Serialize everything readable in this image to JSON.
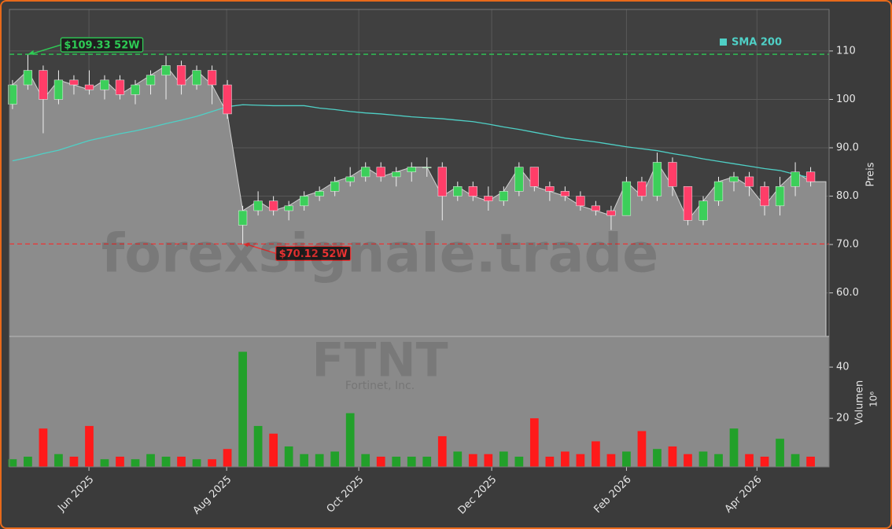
{
  "chart_data": {
    "type": "candlestick",
    "watermark": "forexsignale.trade",
    "symbol": "FTNT",
    "company": "Fortinet, Inc.",
    "categories": [
      null,
      null,
      null,
      null,
      null,
      null,
      null,
      null,
      null,
      null,
      null,
      null,
      null,
      null,
      null,
      null,
      null,
      null,
      null,
      null,
      null,
      null,
      null,
      null,
      null,
      null,
      null,
      null,
      null,
      null,
      null,
      null,
      null,
      null,
      null,
      null,
      null,
      null,
      null,
      null,
      null,
      null,
      null,
      null,
      null,
      null,
      null,
      null,
      null,
      null,
      null,
      null,
      null
    ],
    "open": [
      99,
      103,
      106,
      100,
      104,
      103,
      102,
      104,
      101,
      103,
      105,
      107,
      103,
      106,
      103,
      74,
      77,
      79,
      77,
      78,
      80,
      81,
      83,
      84,
      86,
      84,
      85,
      86,
      86,
      80,
      82,
      80,
      79,
      81,
      86,
      82,
      81,
      80,
      78,
      77,
      76,
      83,
      80,
      87,
      82,
      75,
      79,
      83,
      84,
      82,
      78,
      82,
      85
    ],
    "high": [
      104,
      109.33,
      107,
      106,
      105,
      106,
      105,
      105,
      104,
      106,
      109,
      108,
      107,
      107,
      104,
      78,
      81,
      80,
      79,
      81,
      82,
      84,
      86,
      87,
      87,
      86,
      87,
      88,
      87,
      83,
      83,
      82,
      82,
      87,
      86,
      83,
      82,
      81,
      79,
      78,
      84,
      84,
      89,
      88,
      82,
      80,
      84,
      85,
      85,
      83,
      84,
      87,
      86
    ],
    "low": [
      98,
      102,
      93,
      99,
      101,
      101,
      100,
      100,
      99,
      101,
      100,
      101,
      102,
      99,
      96,
      70.12,
      76,
      76,
      75,
      77,
      79,
      80,
      82,
      83,
      83,
      82,
      83,
      84,
      75,
      79,
      79,
      77,
      78,
      80,
      81,
      79,
      79,
      77,
      76,
      73,
      76,
      79,
      79,
      80,
      74,
      74,
      78,
      81,
      80,
      76,
      76,
      80,
      82
    ],
    "close": [
      103,
      106,
      100,
      104,
      103,
      102,
      104,
      101,
      103,
      105,
      107,
      103,
      106,
      103,
      97,
      77,
      79,
      77,
      78,
      80,
      81,
      83,
      84,
      86,
      84,
      85,
      86,
      86,
      80,
      82,
      80,
      79,
      81,
      86,
      82,
      81,
      80,
      78,
      77,
      76,
      83,
      80,
      87,
      82,
      75,
      79,
      83,
      84,
      82,
      78,
      82,
      85,
      83
    ],
    "up_color": "#3ccf5a",
    "down_color": "#ff3d68",
    "area_color": "#8c8c8c",
    "xlim": [
      -0.2,
      53.2
    ],
    "xticks": [
      {
        "value": 4.98,
        "label": "Jun 2025"
      },
      {
        "value": 13.95,
        "label": "Aug 2025"
      },
      {
        "value": 22.56,
        "label": "Oct 2025"
      },
      {
        "value": 31.22,
        "label": "Dec 2025"
      },
      {
        "value": 40.0,
        "label": "Feb 2026"
      },
      {
        "value": 48.5,
        "label": "Apr 2026"
      }
    ],
    "ylim": [
      51,
      118.6
    ],
    "yticks": [
      {
        "value": 60,
        "label": "60.0"
      },
      {
        "value": 70,
        "label": "70.0"
      },
      {
        "value": 80,
        "label": "80.0"
      },
      {
        "value": 90,
        "label": "90.0"
      },
      100,
      110
    ],
    "ylabel": "Preis",
    "grid": true,
    "legend": "upper right",
    "series": [
      {
        "name": "SMA 200",
        "color": "#4fd0c6",
        "values": [
          87.3,
          88.0,
          88.8,
          89.5,
          90.5,
          91.5,
          92.2,
          92.9,
          93.5,
          94.2,
          95.0,
          95.7,
          96.5,
          97.5,
          98.5,
          98.9,
          98.8,
          98.7,
          98.7,
          98.7,
          98.2,
          97.9,
          97.5,
          97.2,
          97.0,
          96.7,
          96.4,
          96.2,
          96.0,
          95.7,
          95.4,
          94.9,
          94.3,
          93.8,
          93.2,
          92.6,
          92.0,
          91.6,
          91.2,
          90.7,
          90.2,
          89.8,
          89.4,
          88.8,
          88.3,
          87.7,
          87.2,
          86.7,
          86.2,
          85.7,
          85.3,
          84.5,
          83.8
        ]
      }
    ],
    "annotations": [
      {
        "text": "$109.33 52W",
        "value": 109.33,
        "color": "#2ecc55"
      },
      {
        "text": "$70.12 52W",
        "value": 70.12,
        "color": "#ee3333"
      }
    ],
    "volume": {
      "values": [
        4,
        5,
        16,
        6,
        5,
        17,
        4,
        5,
        4,
        6,
        5,
        5,
        4,
        4,
        8,
        46,
        17,
        14,
        9,
        6,
        6,
        7,
        22,
        6,
        5,
        5,
        5,
        5,
        13,
        7,
        6,
        6,
        7,
        5,
        20,
        5,
        7,
        6,
        11,
        6,
        7,
        15,
        8,
        9,
        6,
        7,
        6,
        16,
        6,
        5,
        12,
        6,
        5
      ],
      "up_color": "#22a02a",
      "down_color": "#ff1a1a",
      "ylim": [
        1,
        52
      ],
      "yticks": [
        20,
        40
      ],
      "ylabel": "Volumen",
      "unit_label": "10⁶"
    }
  }
}
